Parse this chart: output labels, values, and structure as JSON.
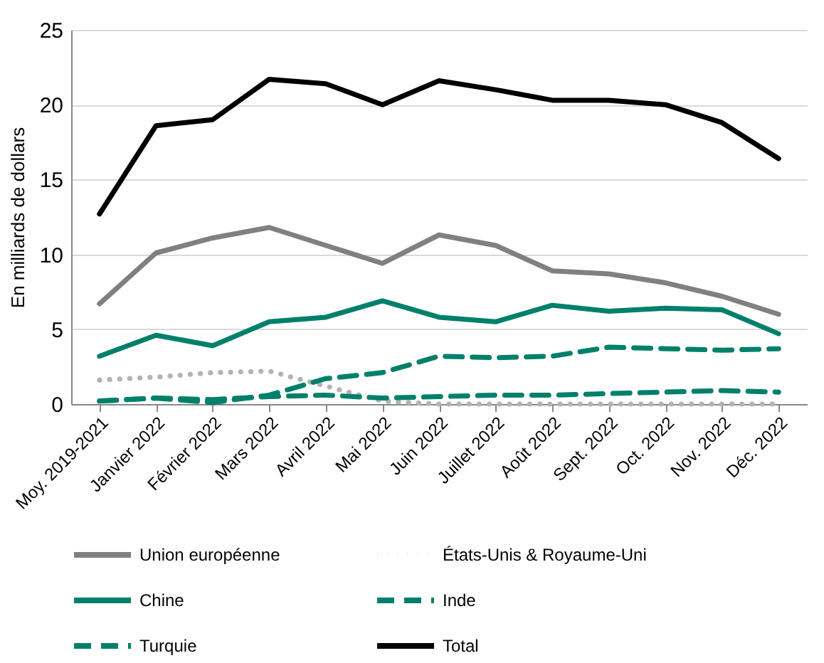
{
  "chart_data": {
    "type": "line",
    "ylabel": "En milliards de dollars",
    "categories": [
      "Moy. 2019-2021",
      "Janvier 2022",
      "Février 2022",
      "Mars 2022",
      "Avril 2022",
      "Mai 2022",
      "Juin 2022",
      "Juillet 2022",
      "Août 2022",
      "Sept. 2022",
      "Oct. 2022",
      "Nov. 2022",
      "Déc. 2022"
    ],
    "ylim": [
      0,
      25
    ],
    "yticks": [
      0,
      5,
      10,
      15,
      20,
      25
    ],
    "grid": "y",
    "legend": "bottom",
    "series": [
      {
        "name": "Union européenne",
        "color": "#808080",
        "line_style": "solid",
        "values": [
          6.7,
          10.1,
          11.1,
          11.8,
          10.6,
          9.4,
          11.3,
          10.6,
          8.9,
          8.7,
          8.1,
          7.2,
          6.0
        ]
      },
      {
        "name": "États-Unis & Royaume-Uni",
        "color": "#b3b3b3",
        "line_style": "dotted",
        "values": [
          1.6,
          1.8,
          2.1,
          2.2,
          1.2,
          0.2,
          0,
          0,
          0,
          0,
          0,
          0,
          0
        ]
      },
      {
        "name": "Chine",
        "color": "#00806a",
        "line_style": "solid",
        "values": [
          3.2,
          4.6,
          3.9,
          5.5,
          5.8,
          6.9,
          5.8,
          5.5,
          6.6,
          6.2,
          6.4,
          6.3,
          4.7
        ]
      },
      {
        "name": "Inde",
        "color": "#00806a",
        "line_style": "dashed",
        "values": [
          0.2,
          0.4,
          0.1,
          0.6,
          1.7,
          2.1,
          3.2,
          3.1,
          3.2,
          3.8,
          3.7,
          3.6,
          3.7
        ]
      },
      {
        "name": "Turquie",
        "color": "#00806a",
        "line_style": "dashed",
        "values": [
          0.2,
          0.4,
          0.3,
          0.5,
          0.6,
          0.4,
          0.5,
          0.6,
          0.6,
          0.7,
          0.8,
          0.9,
          0.8
        ]
      },
      {
        "name": "Total",
        "color": "#000000",
        "line_style": "solid",
        "values": [
          12.7,
          18.6,
          19.0,
          21.7,
          21.4,
          20.0,
          21.6,
          21.0,
          20.3,
          20.3,
          20.0,
          18.8,
          16.4
        ]
      }
    ]
  }
}
